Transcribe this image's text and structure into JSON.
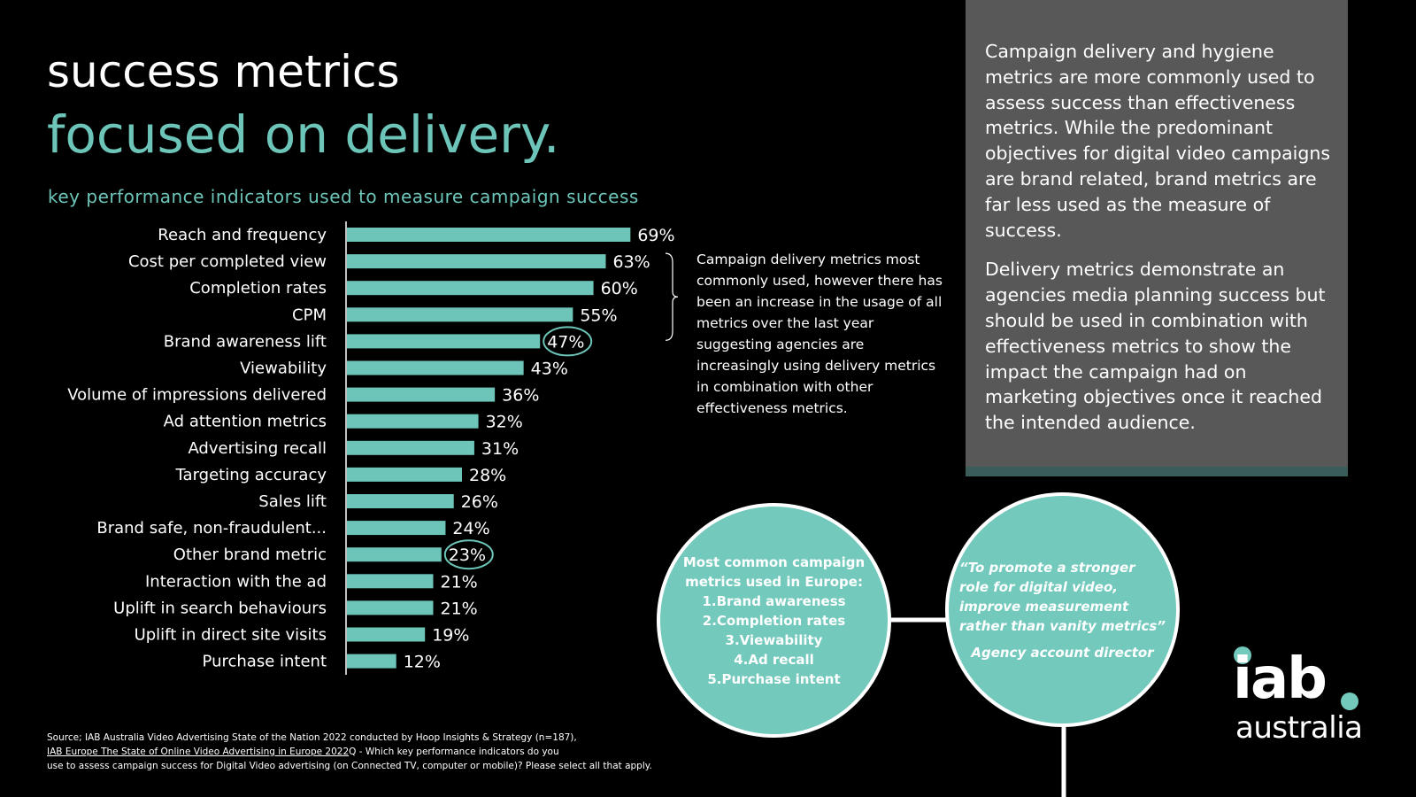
{
  "header": {
    "title_line1": "success metrics",
    "title_line2": "focused on delivery.",
    "subtitle": "key performance indicators used to measure campaign success"
  },
  "chart_data": {
    "type": "bar",
    "orientation": "horizontal",
    "categories": [
      "Reach and frequency",
      "Cost per completed view",
      "Completion rates",
      "CPM",
      "Brand awareness lift",
      "Viewability",
      "Volume of impressions delivered",
      "Ad attention metrics",
      "Advertising recall",
      "Targeting accuracy",
      "Sales lift",
      "Brand safe, non-fraudulent...",
      "Other brand metric",
      "Interaction with the ad",
      "Uplift in search behaviours",
      "Uplift in direct site visits",
      "Purchase intent"
    ],
    "values": [
      69,
      63,
      60,
      55,
      47,
      43,
      36,
      32,
      31,
      28,
      26,
      24,
      23,
      21,
      21,
      19,
      12
    ],
    "value_labels": [
      "69%",
      "63%",
      "60%",
      "55%",
      "47%",
      "43%",
      "36%",
      "32%",
      "31%",
      "28%",
      "26%",
      "24%",
      "23%",
      "21%",
      "21%",
      "19%",
      "12%"
    ],
    "highlighted": [
      "Brand awareness lift",
      "Other brand metric"
    ],
    "bracketed": [
      "Cost per completed view",
      "Completion rates",
      "CPM"
    ],
    "xlim": [
      0,
      70
    ],
    "bar_color": "#6cc5b8",
    "highlight_color": "#6cc5b8"
  },
  "annotation": {
    "text": "Campaign delivery metrics most commonly used, however there has been an increase in the usage of all metrics over the last year suggesting agencies are increasingly using delivery metrics in combination with other effectiveness metrics."
  },
  "panel": {
    "paragraph1": "Campaign delivery and hygiene metrics are more commonly used to assess success than effectiveness metrics. While the predominant objectives for digital video campaigns are brand related, brand metrics are far less used as the measure of success.",
    "paragraph2": "Delivery metrics demonstrate an agencies media planning success but should be used in combination with effectiveness metrics to show the impact the campaign had on marketing objectives once it reached the intended audience."
  },
  "europe_circle": {
    "heading_line1": "Most common campaign",
    "heading_line2": "metrics used in Europe:",
    "items": [
      "1.Brand awareness",
      "2.Completion rates",
      "3.Viewability",
      "4.Ad recall",
      "5.Purchase intent"
    ]
  },
  "quote_circle": {
    "line1": "“To promote a stronger",
    "line2": "role for digital video,",
    "line3": "improve measurement",
    "line4": "rather than vanity metrics”",
    "author": "Agency account director"
  },
  "logo": {
    "main": "iab",
    "sub": "australia"
  },
  "source": {
    "line1": "Source; IAB Australia Video Advertising State of the Nation 2022 conducted by Hoop Insights & Strategy (n=187),",
    "link": "IAB Europe The State of Online Video Advertising in Europe 2022",
    "line2_rest": "Q - Which key performance indicators do you",
    "line3": "use to assess campaign success for Digital Video advertising (on Connected TV, computer or mobile)? Please select all that apply."
  },
  "colors": {
    "background": "#000000",
    "accent": "#6cc5b8",
    "panel": "#585858",
    "panel_bar": "#3b5d5a"
  }
}
